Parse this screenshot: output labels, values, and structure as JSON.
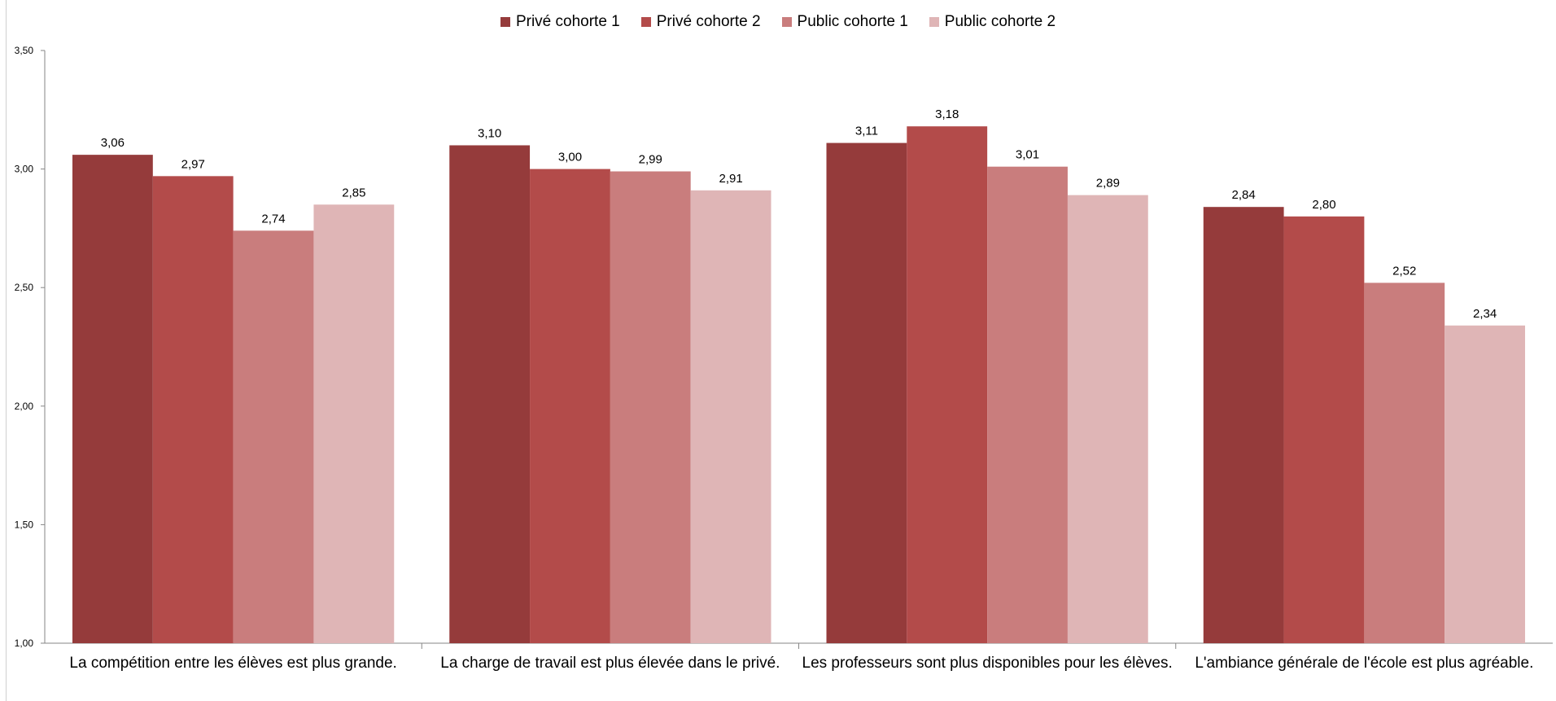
{
  "chart_data": {
    "type": "bar",
    "title": "",
    "xlabel": "",
    "ylabel": "",
    "ylim": [
      1.0,
      3.5
    ],
    "yticks": [
      "1,00",
      "1,50",
      "2,00",
      "2,50",
      "3,00",
      "3,50"
    ],
    "ytick_values": [
      1.0,
      1.5,
      2.0,
      2.5,
      3.0,
      3.5
    ],
    "grid": false,
    "legend_position": "top-center",
    "categories": [
      "La compétition entre les élèves est plus grande.",
      "La charge de travail est plus élevée dans le privé.",
      "Les professeurs sont plus disponibles pour les élèves.",
      "L'ambiance générale de l'école est plus agréable."
    ],
    "series": [
      {
        "name": "Privé cohorte 1",
        "color": "#953B3B",
        "values": [
          3.06,
          3.1,
          3.11,
          2.84
        ],
        "labels": [
          "3,06",
          "3,10",
          "3,11",
          "2,84"
        ]
      },
      {
        "name": "Privé cohorte 2",
        "color": "#B34B4A",
        "values": [
          2.97,
          3.0,
          3.18,
          2.8
        ],
        "labels": [
          "2,97",
          "3,00",
          "3,18",
          "2,80"
        ]
      },
      {
        "name": "Public cohorte 1",
        "color": "#C97D7D",
        "values": [
          2.74,
          2.99,
          3.01,
          2.52
        ],
        "labels": [
          "2,74",
          "2,99",
          "3,01",
          "2,52"
        ]
      },
      {
        "name": "Public cohorte 2",
        "color": "#DFB5B6",
        "values": [
          2.85,
          2.91,
          2.89,
          2.34
        ],
        "labels": [
          "2,85",
          "2,91",
          "2,89",
          "2,34"
        ]
      }
    ]
  }
}
